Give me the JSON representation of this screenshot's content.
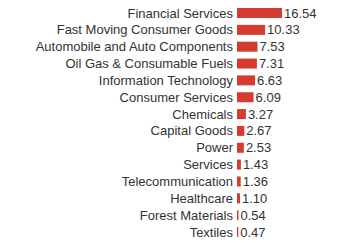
{
  "chart_data": {
    "type": "bar",
    "orientation": "horizontal",
    "categories": [
      "Financial Services",
      "Fast Moving Consumer Goods",
      "Automobile and Auto Components",
      "Oil Gas & Consumable Fuels",
      "Information Technology",
      "Consumer Services",
      "Chemicals",
      "Capital Goods",
      "Power",
      "Services",
      "Telecommunication",
      "Healthcare",
      "Forest Materials",
      "Textiles"
    ],
    "values": [
      16.54,
      10.33,
      7.53,
      7.31,
      6.63,
      6.09,
      3.27,
      2.67,
      2.53,
      1.43,
      1.36,
      1.1,
      0.54,
      0.47
    ],
    "value_labels": [
      "16.54",
      "10.33",
      "7.53",
      "7.31",
      "6.63",
      "6.09",
      "3.27",
      "2.67",
      "2.53",
      "1.43",
      "1.36",
      "1.10",
      "0.54",
      "0.47"
    ],
    "color": "#d63b2f",
    "data_labels": true,
    "tick_labels": false,
    "grid": false
  }
}
